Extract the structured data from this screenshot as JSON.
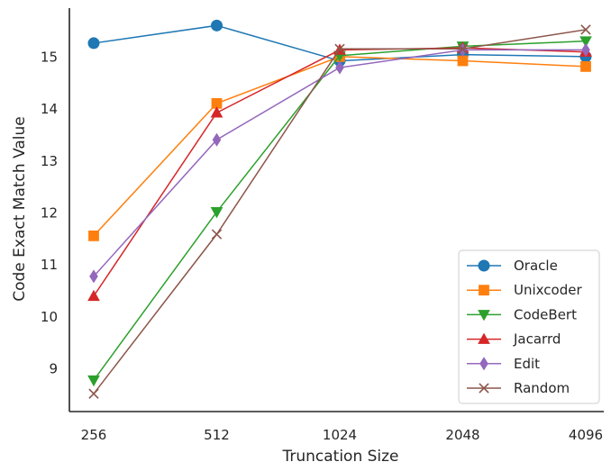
{
  "chart_data": {
    "type": "line",
    "xlabel": "Truncation Size",
    "ylabel": "Code Exact Match Value",
    "categories": [
      "256",
      "512",
      "1024",
      "2048",
      "4096"
    ],
    "ylim": [
      8.2,
      16.0
    ],
    "yticks": [
      9,
      10,
      11,
      12,
      13,
      14,
      15
    ],
    "ytick_labels": [
      "9",
      "10",
      "11",
      "12",
      "13",
      "14",
      "15"
    ],
    "grid": false,
    "legend_position": "lower-right",
    "series": [
      {
        "name": "Oracle",
        "color": "#1f77b4",
        "marker": "circle",
        "values": [
          15.27,
          15.61,
          14.93,
          15.05,
          15.01
        ]
      },
      {
        "name": "Unixcoder",
        "color": "#ff7f0e",
        "marker": "square",
        "values": [
          11.56,
          14.11,
          15.01,
          14.93,
          14.82
        ]
      },
      {
        "name": "CodeBert",
        "color": "#2ca02c",
        "marker": "triangle-down",
        "values": [
          8.78,
          12.02,
          15.03,
          15.21,
          15.31
        ]
      },
      {
        "name": "Jacarrd",
        "color": "#d62728",
        "marker": "triangle-up",
        "values": [
          10.4,
          13.93,
          15.14,
          15.18,
          15.1
        ]
      },
      {
        "name": "Edit",
        "color": "#9467bd",
        "marker": "diamond",
        "values": [
          10.78,
          13.41,
          14.8,
          15.14,
          15.14
        ]
      },
      {
        "name": "Random",
        "color": "#8c564b",
        "marker": "x",
        "values": [
          8.52,
          11.59,
          15.16,
          15.16,
          15.53
        ]
      }
    ]
  }
}
